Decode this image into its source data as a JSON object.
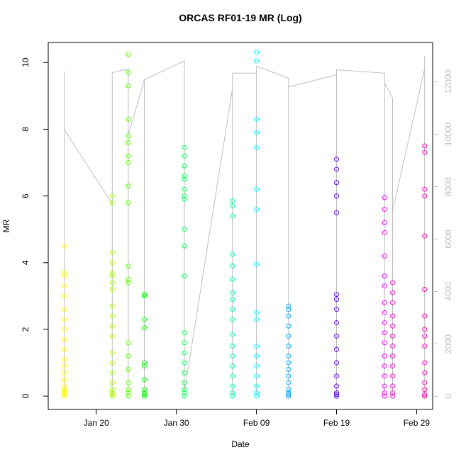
{
  "chart_data": {
    "type": "scatter",
    "title": "ORCAS RF01-19 MR (Log)",
    "x_label": "Date",
    "y_label": "MR",
    "xlim": [
      "Jan 14",
      "Mar 02"
    ],
    "xticks": [
      "Jan 20",
      "Jan 30",
      "Feb 09",
      "Feb 19",
      "Feb 29"
    ],
    "ylim": [
      -0.4,
      10.6
    ],
    "yticks": [
      0,
      2,
      4,
      6,
      8,
      10
    ],
    "y2lim": [
      -500,
      13500
    ],
    "y2ticks": [
      0,
      2000,
      4000,
      6000,
      8000,
      10000,
      12000
    ],
    "y2_color": "#bebebe",
    "series": [
      {
        "color": "#FFFF00",
        "x": "Jan 16",
        "values": [
          0,
          0.05,
          0.1,
          0.15,
          0.2,
          0.3,
          0.5,
          0.7,
          0.9,
          1.1,
          1.4,
          1.7,
          2.0,
          2.3,
          2.6,
          3.0,
          3.3,
          3.6,
          3.7,
          4.5
        ]
      },
      {
        "color": "#AAFF00",
        "x": "Jan 22",
        "values": [
          0,
          0.05,
          0.1,
          0.2,
          0.4,
          0.7,
          1.0,
          1.3,
          1.8,
          2.1,
          2.4,
          2.7,
          3.2,
          3.4,
          3.6,
          3.7,
          4.0,
          4.3,
          5.8,
          6.0
        ]
      },
      {
        "color": "#55FF00",
        "x": "Jan 24",
        "values": [
          0,
          0.1,
          0.2,
          0.4,
          0.8,
          1.2,
          1.6,
          3.4,
          3.5,
          3.9,
          5.8,
          6.3,
          7.0,
          7.2,
          7.6,
          7.8,
          8.3,
          9.3,
          9.7,
          10.25
        ]
      },
      {
        "color": "#00FF00",
        "x": "Jan 26",
        "values": [
          0,
          0.05,
          0.1,
          0.2,
          0.5,
          0.9,
          1.0,
          2.05,
          2.3,
          3.0,
          3.05
        ]
      },
      {
        "color": "#00FF55",
        "x": "Jan 31",
        "values": [
          0,
          0.1,
          0.2,
          0.4,
          0.7,
          1.0,
          1.3,
          1.6,
          1.9,
          3.6,
          4.5,
          5.0,
          5.9,
          6.0,
          6.2,
          6.5,
          6.6,
          6.9,
          7.2,
          7.45
        ]
      },
      {
        "color": "#00FFAA",
        "x": "Feb 06",
        "values": [
          0,
          0.1,
          0.3,
          0.6,
          0.9,
          1.2,
          1.5,
          1.85,
          2.3,
          2.6,
          2.9,
          3.1,
          3.5,
          3.9,
          4.25,
          5.4,
          5.7,
          5.85
        ]
      },
      {
        "color": "#00FFFF",
        "x": "Feb 09",
        "values": [
          0,
          0.1,
          0.3,
          0.6,
          0.9,
          1.2,
          1.5,
          2.3,
          2.5,
          3.95,
          5.6,
          6.2,
          7.45,
          7.9,
          8.3,
          10.05,
          10.3
        ]
      },
      {
        "color": "#00AAFF",
        "x": "Feb 13",
        "values": [
          0,
          0.05,
          0.1,
          0.2,
          0.4,
          0.6,
          0.8,
          1.0,
          1.2,
          1.5,
          1.8,
          2.1,
          2.4,
          2.6,
          2.7
        ]
      },
      {
        "color": "#5500FF",
        "x": "Feb 19",
        "values": [
          0,
          0.05,
          0.1,
          0.3,
          0.6,
          1.0,
          1.4,
          1.8,
          2.2,
          2.6,
          2.9,
          3.05,
          5.5,
          6.0,
          6.4,
          6.8,
          7.1
        ]
      },
      {
        "color": "#FF00FF",
        "x": "Feb 25",
        "values": [
          0,
          0.1,
          0.3,
          0.6,
          0.9,
          1.2,
          1.6,
          1.9,
          2.2,
          2.5,
          2.8,
          3.3,
          3.6,
          4.2,
          4.9,
          5.2,
          5.6,
          5.95
        ]
      },
      {
        "color": "#FF00CC",
        "x": "Feb 26",
        "values": [
          0,
          0.1,
          0.3,
          0.6,
          0.9,
          1.2,
          1.5,
          1.8,
          2.1,
          2.4,
          2.8,
          3.1,
          3.4
        ]
      },
      {
        "color": "#FF00AA",
        "x": "Mar 01",
        "values": [
          0,
          0.05,
          0.2,
          0.4,
          0.7,
          1.0,
          1.5,
          1.8,
          2.0,
          2.4,
          3.2,
          4.8,
          6.0,
          6.2,
          7.3,
          7.5
        ]
      }
    ],
    "line": {
      "axis": "y2",
      "color": "#bebebe",
      "x": [
        "Jan 16",
        "Jan 16",
        "Jan 16",
        "Jan 16",
        "Jan 22",
        "Jan 22",
        "Jan 22",
        "Jan 22",
        "Jan 24",
        "Jan 24",
        "Jan 24",
        "Jan 26",
        "Jan 26",
        "Jan 26",
        "Jan 31",
        "Jan 31",
        "Jan 31",
        "Feb 06",
        "Feb 06",
        "Feb 06",
        "Feb 09",
        "Feb 09",
        "Feb 09",
        "Feb 13",
        "Feb 13",
        "Feb 13",
        "Feb 19",
        "Feb 19",
        "Feb 19",
        "Feb 25",
        "Feb 25",
        "Feb 25",
        "Feb 26",
        "Feb 26",
        "Feb 26",
        "Mar 01",
        "Mar 01",
        "Mar 01"
      ],
      "values": [
        0,
        12400,
        0,
        10180,
        7340,
        12350,
        0,
        12350,
        12500,
        0,
        9970,
        12080,
        0,
        12080,
        12800,
        0,
        160,
        11730,
        0,
        12330,
        12330,
        0,
        12600,
        12140,
        0,
        11800,
        12270,
        0,
        12460,
        12330,
        0,
        11950,
        11380,
        0,
        7070,
        12500,
        0,
        13000
      ]
    }
  }
}
